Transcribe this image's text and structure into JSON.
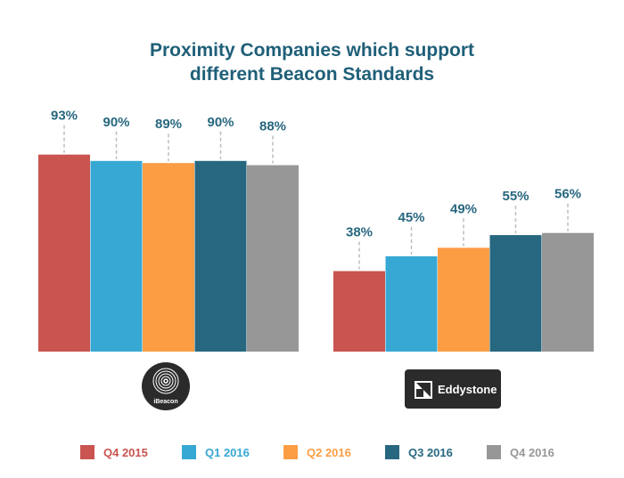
{
  "chart_data": {
    "type": "bar",
    "title": [
      "Proximity Companies which support",
      "different Beacon Standards"
    ],
    "categories": [
      "iBeacon",
      "Eddystone"
    ],
    "series": [
      {
        "name": "Q4 2015",
        "color": "#c95450",
        "values": [
          93,
          38
        ],
        "labels": [
          "93%",
          "38%"
        ]
      },
      {
        "name": "Q1 2016",
        "color": "#37a8d3",
        "values": [
          90,
          45
        ],
        "labels": [
          "90%",
          "45%"
        ]
      },
      {
        "name": "Q2 2016",
        "color": "#fc9d44",
        "values": [
          89,
          49
        ],
        "labels": [
          "89%",
          "49%"
        ]
      },
      {
        "name": "Q3 2016",
        "color": "#27677f",
        "values": [
          90,
          55
        ],
        "labels": [
          "90%",
          "55%"
        ]
      },
      {
        "name": "Q4 2016",
        "color": "#979797",
        "values": [
          88,
          56
        ],
        "labels": [
          "88%",
          "56%"
        ]
      }
    ],
    "ylim": [
      0,
      100
    ],
    "legend_position": "bottom"
  },
  "badges": {
    "ibeacon": {
      "label": "iBeacon",
      "icon": "ibeacon-logo-icon"
    },
    "eddystone": {
      "label": "Eddystone",
      "icon": "eddystone-logo-icon"
    }
  },
  "colors": {
    "title": "#1f5f78",
    "badge_bg": "#2b2b2b",
    "leader_line": "#bdbdbd"
  }
}
